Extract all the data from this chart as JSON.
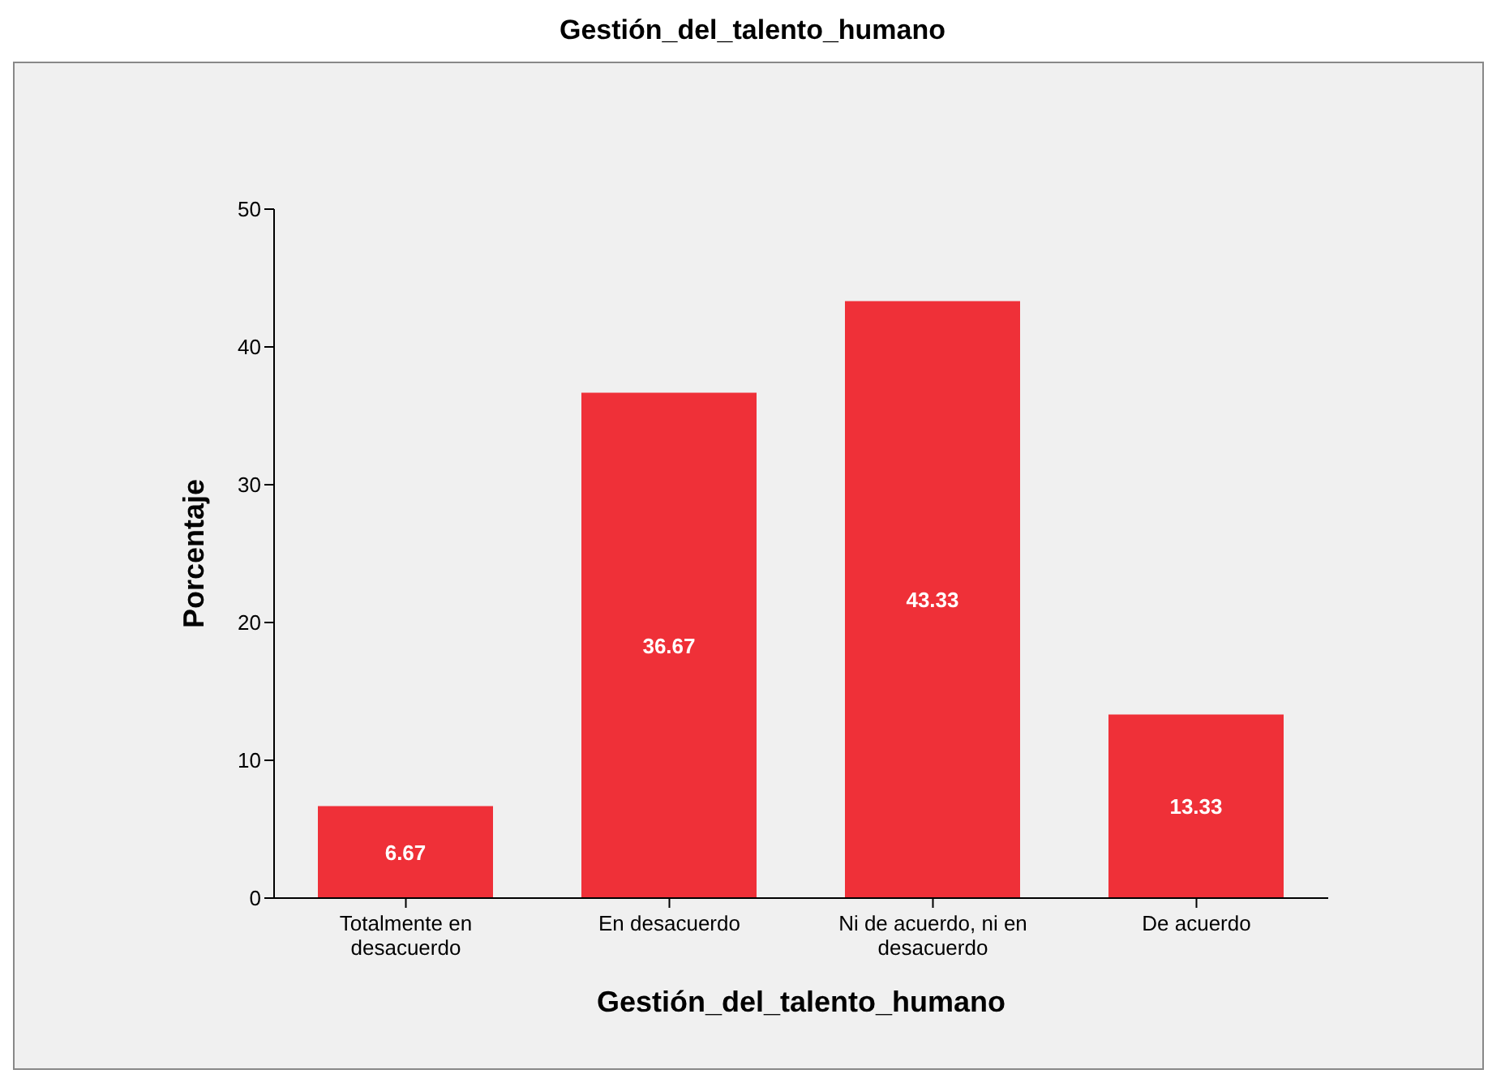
{
  "chart_data": {
    "type": "bar",
    "title": "Gestión_del_talento_humano",
    "xlabel": "Gestión_del_talento_humano",
    "ylabel": "Porcentaje",
    "categories": [
      "Totalmente en desacuerdo",
      "En desacuerdo",
      "Ni de acuerdo, ni en desacuerdo",
      "De acuerdo"
    ],
    "values": [
      6.67,
      36.67,
      43.33,
      13.33
    ],
    "color": "#ef3038",
    "ylim": [
      0,
      50
    ],
    "yticks": [
      0,
      10,
      20,
      30,
      40,
      50
    ],
    "grid": false,
    "legend": false,
    "data_labels": true
  }
}
